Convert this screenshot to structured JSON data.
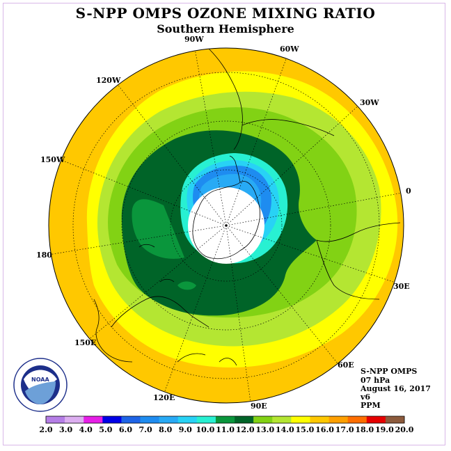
{
  "title": "S-NPP OMPS OZONE MIXING RATIO",
  "subtitle": "Southern Hemisphere",
  "longitude_labels": [
    "90W",
    "60W",
    "30W",
    "0",
    "30E",
    "60E",
    "90E",
    "120E",
    "150E",
    "180",
    "150W",
    "120W"
  ],
  "info": {
    "instrument": "S-NPP OMPS",
    "pressure": "07 hPa",
    "date": "August 16, 2017",
    "version": "v6",
    "units": "PPM"
  },
  "logo": {
    "text": "NOAA",
    "ring_text": "NATIONAL OCEANIC AND ATMOSPHERIC ADMINISTRATION · U.S. DEPARTMENT OF COMMERCE"
  },
  "colorbar": {
    "labels": [
      "2.0",
      "3.0",
      "4.0",
      "5.0",
      "6.0",
      "7.0",
      "8.0",
      "9.0",
      "10.0",
      "11.0",
      "12.0",
      "13.0",
      "14.0",
      "15.0",
      "16.0",
      "17.0",
      "18.0",
      "19.0",
      "20.0"
    ],
    "colors": [
      "#b57ee6",
      "#dcaef0",
      "#e61ee6",
      "#0000e6",
      "#1e64e6",
      "#1e8cf0",
      "#28aaf5",
      "#28d2f5",
      "#28f0d2",
      "#0a963c",
      "#006428",
      "#82d214",
      "#b4e632",
      "#ffff00",
      "#ffc800",
      "#ffa000",
      "#ff6e00",
      "#e60000",
      "#8c5a3c"
    ]
  }
}
